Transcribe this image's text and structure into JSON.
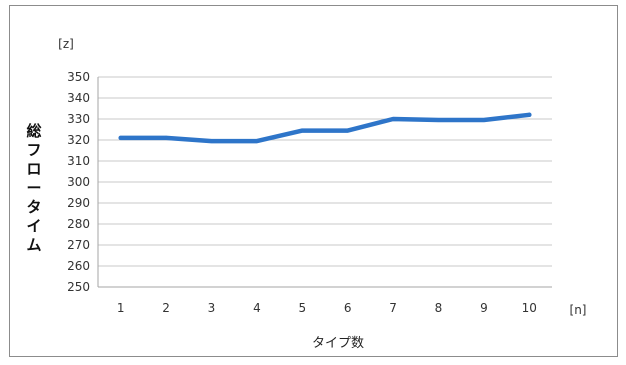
{
  "chart_data": {
    "type": "line",
    "title": "",
    "xlabel": "タイプ数",
    "ylabel": "総フロータイム",
    "y_unit": "[z]",
    "x_unit": "[n]",
    "categories": [
      "1",
      "2",
      "3",
      "4",
      "5",
      "6",
      "7",
      "8",
      "9",
      "10"
    ],
    "series": [
      {
        "values": [
          321,
          321,
          319.5,
          319.5,
          324.5,
          324.5,
          330,
          329.5,
          329.5,
          332
        ]
      }
    ],
    "ylim": [
      250,
      350
    ],
    "yticks": [
      250,
      260,
      270,
      280,
      290,
      300,
      310,
      320,
      330,
      340,
      350
    ],
    "grid": true,
    "legend": "none",
    "colors": {
      "line": "#2e75c9",
      "grid": "#c8c8c8",
      "axis": "#a6a6a6"
    }
  }
}
